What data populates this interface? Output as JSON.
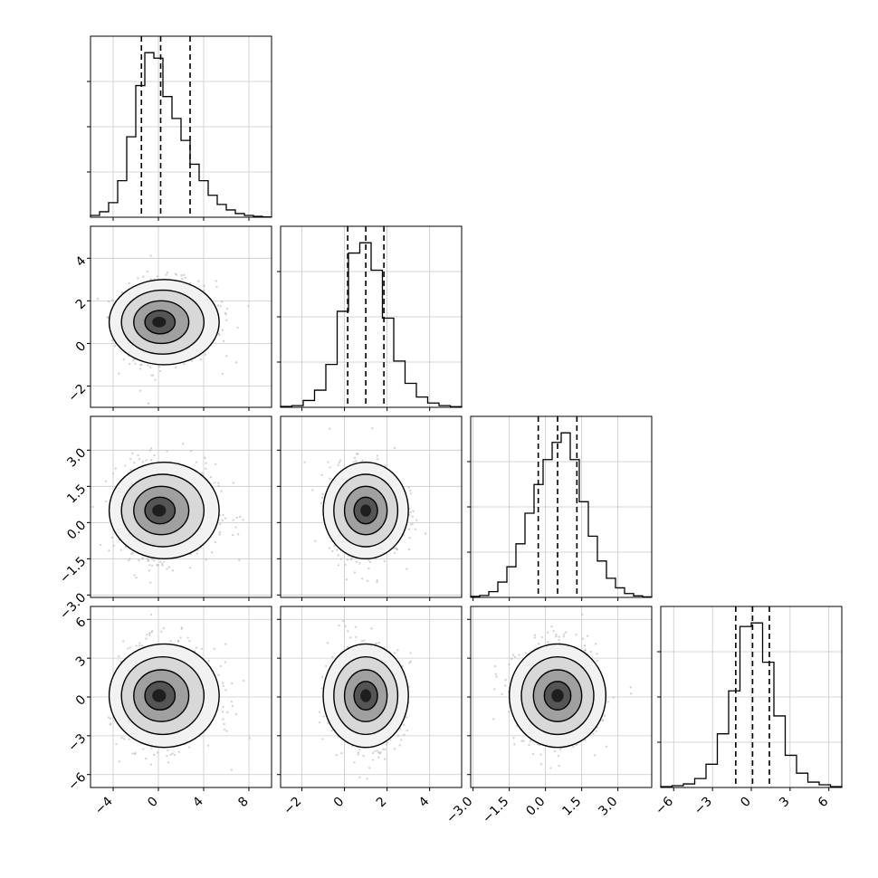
{
  "chart_data": {
    "type": "corner",
    "title": "",
    "num_params": 4,
    "params": [
      {
        "range": [
          -6,
          10
        ],
        "ticks": [
          -4,
          0,
          4,
          8
        ],
        "tick_labels": [
          "−4",
          "0",
          "4",
          "8"
        ],
        "quantiles": [
          -1.5,
          0.2,
          2.8
        ],
        "hist": [
          0.1,
          0.3,
          0.8,
          2.0,
          4.4,
          7.2,
          9.0,
          8.7,
          6.6,
          5.4,
          4.2,
          2.9,
          2.0,
          1.2,
          0.7,
          0.4,
          0.2,
          0.1,
          0.05,
          0.02
        ]
      },
      {
        "range": [
          -3,
          5.5
        ],
        "ticks": [
          -2,
          0,
          2,
          4
        ],
        "tick_labels": [
          "−2",
          "0",
          "2",
          "4"
        ],
        "quantiles": [
          0.15,
          1.0,
          1.85
        ],
        "hist": [
          0.05,
          0.1,
          0.4,
          1.0,
          2.5,
          5.6,
          9.0,
          9.6,
          8.0,
          5.2,
          2.7,
          1.4,
          0.6,
          0.25,
          0.1,
          0.04
        ]
      },
      {
        "range": [
          -3.1,
          4.4
        ],
        "ticks": [
          -3.0,
          -1.5,
          0.0,
          1.5,
          3.0
        ],
        "tick_labels": [
          "−3.0",
          "−1.5",
          "0.0",
          "1.5",
          "3.0"
        ],
        "quantiles": [
          -0.3,
          0.5,
          1.3
        ],
        "hist": [
          0.05,
          0.1,
          0.3,
          0.8,
          1.6,
          2.8,
          4.4,
          5.9,
          7.2,
          8.1,
          8.6,
          7.2,
          5.0,
          3.2,
          1.9,
          1.0,
          0.5,
          0.2,
          0.08,
          0.03
        ]
      },
      {
        "range": [
          -7,
          7
        ],
        "ticks": [
          -6,
          -3,
          0,
          3,
          6
        ],
        "tick_labels": [
          "−6",
          "−3",
          "0",
          "3",
          "6"
        ],
        "quantiles": [
          -1.2,
          0.1,
          1.4
        ],
        "hist": [
          0.05,
          0.1,
          0.2,
          0.5,
          1.3,
          3.0,
          5.4,
          9.0,
          9.2,
          7.0,
          4.0,
          1.8,
          0.8,
          0.3,
          0.15,
          0.05
        ]
      }
    ],
    "pairs": [
      {
        "x_param": 0,
        "y_param": 1,
        "center": [
          0,
          1
        ],
        "spread": [
          2.4,
          1.1
        ]
      },
      {
        "x_param": 0,
        "y_param": 2,
        "center": [
          0,
          0.5
        ],
        "spread": [
          2.4,
          1.0
        ]
      },
      {
        "x_param": 1,
        "y_param": 2,
        "center": [
          1,
          0.5
        ],
        "spread": [
          1.0,
          1.0
        ]
      },
      {
        "x_param": 0,
        "y_param": 3,
        "center": [
          0,
          0.1
        ],
        "spread": [
          2.4,
          2.0
        ]
      },
      {
        "x_param": 1,
        "y_param": 3,
        "center": [
          1,
          0.1
        ],
        "spread": [
          1.0,
          2.0
        ]
      },
      {
        "x_param": 2,
        "y_param": 3,
        "center": [
          0.5,
          0.1
        ],
        "spread": [
          1.0,
          2.0
        ]
      }
    ],
    "grid": true,
    "legend": "none"
  }
}
